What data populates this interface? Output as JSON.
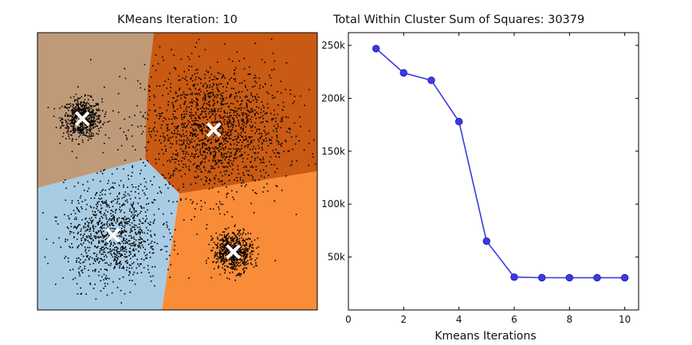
{
  "chart_data": [
    {
      "type": "scatter",
      "title": "KMeans Iteration: 10",
      "xlabel": "",
      "ylabel": "",
      "regions": [
        {
          "name": "top-left",
          "color": "#bf9a78"
        },
        {
          "name": "top-right",
          "color": "#c85a14"
        },
        {
          "name": "bottom-left",
          "color": "#a8cce4"
        },
        {
          "name": "bottom-right",
          "color": "#f88c38"
        }
      ],
      "clusters": [
        {
          "center": [
            0.16,
            0.69
          ],
          "spread": [
            0.035,
            0.035
          ],
          "count": 650
        },
        {
          "center": [
            0.63,
            0.65
          ],
          "spread": [
            0.13,
            0.12
          ],
          "count": 1600
        },
        {
          "center": [
            0.27,
            0.27
          ],
          "spread": [
            0.085,
            0.09
          ],
          "count": 1000
        },
        {
          "center": [
            0.7,
            0.21
          ],
          "spread": [
            0.035,
            0.035
          ],
          "count": 650
        }
      ],
      "centroids": [
        [
          0.16,
          0.69
        ],
        [
          0.63,
          0.65
        ],
        [
          0.27,
          0.27
        ],
        [
          0.7,
          0.21
        ]
      ],
      "centroid_marker": "x",
      "centroid_color": "#ffffff",
      "point_color": "#000000",
      "grid": false
    },
    {
      "type": "line",
      "title": "Total Within Cluster Sum of Squares: 30379",
      "xlabel": "Kmeans Iterations",
      "ylabel": "",
      "x": [
        1,
        2,
        3,
        4,
        5,
        6,
        7,
        8,
        9,
        10
      ],
      "y": [
        247000,
        224000,
        217000,
        178000,
        65000,
        31000,
        30500,
        30400,
        30400,
        30379
      ],
      "xlim": [
        0,
        10.5
      ],
      "ylim": [
        0,
        262000
      ],
      "xticks": [
        0,
        2,
        4,
        6,
        8,
        10
      ],
      "yticks": [
        50000,
        100000,
        150000,
        200000,
        250000
      ],
      "ytick_labels": [
        "50k",
        "100k",
        "150k",
        "200k",
        "250k"
      ],
      "line_color": "#3a3ae6",
      "grid": false
    }
  ]
}
